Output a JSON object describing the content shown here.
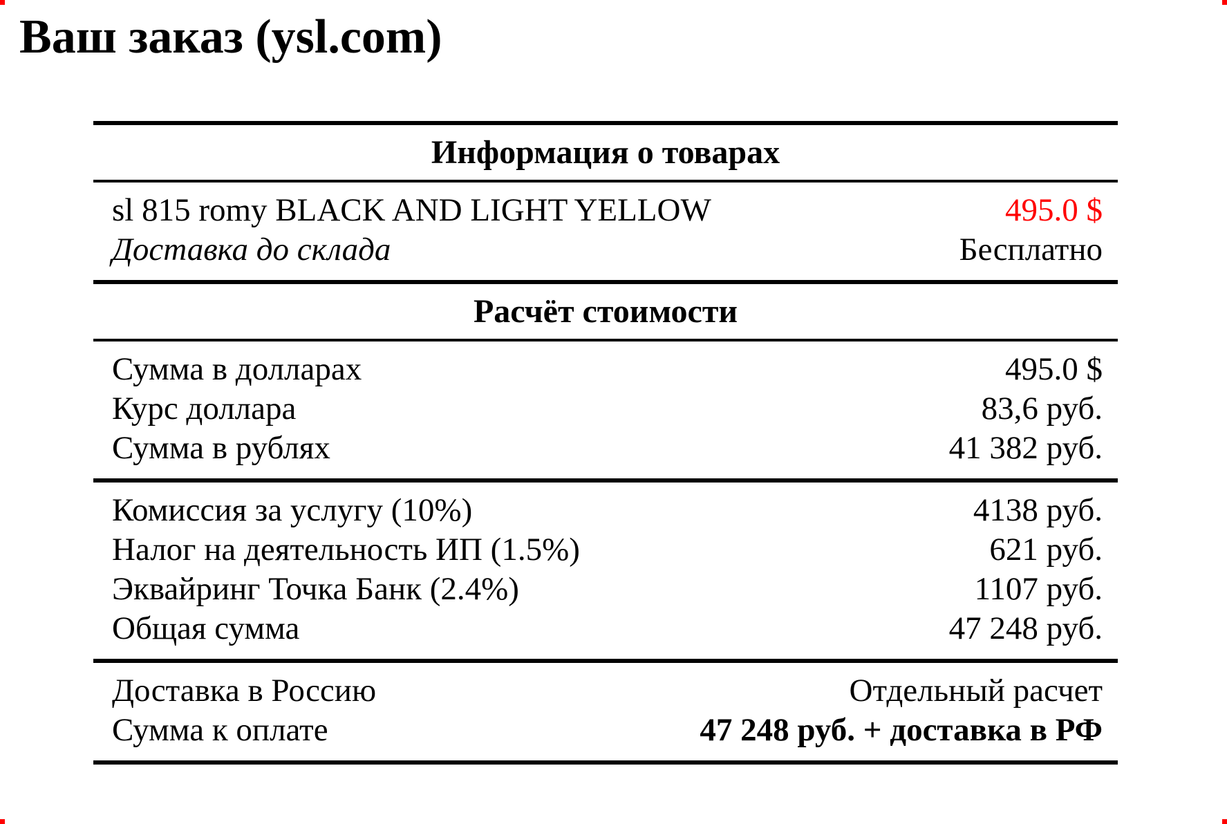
{
  "page": {
    "title": "Ваш заказ (ysl.com)"
  },
  "colors": {
    "text": "#000000",
    "rule": "#000000",
    "price_highlight": "#ff0000",
    "corner_marker": "#ff0000"
  },
  "table": {
    "blocks": [
      {
        "type": "header",
        "text": "Информация о товарах"
      },
      {
        "type": "rows",
        "rows": [
          {
            "label": "sl 815 romy BLACK AND LIGHT YELLOW",
            "value": "495.0 $",
            "value_red": true
          },
          {
            "label": "Доставка до склада",
            "label_italic": true,
            "value": "Бесплатно"
          }
        ]
      },
      {
        "type": "header",
        "text": "Расчёт стоимости"
      },
      {
        "type": "rows",
        "rows": [
          {
            "label": "Сумма в долларах",
            "value": "495.0 $"
          },
          {
            "label": "Курс доллара",
            "value": "83,6 руб."
          },
          {
            "label": "Сумма в рублях",
            "value": "41 382 руб."
          }
        ]
      },
      {
        "type": "rows",
        "rows": [
          {
            "label": "Комиссия за услугу (10%)",
            "value": "4138 руб."
          },
          {
            "label": "Налог на деятельность ИП (1.5%)",
            "value": "621 руб."
          },
          {
            "label": "Эквайринг Точка Банк (2.4%)",
            "value": "1107 руб."
          },
          {
            "label": "Общая сумма",
            "value": "47 248 руб."
          }
        ]
      },
      {
        "type": "rows",
        "rows": [
          {
            "label": "Доставка в Россию",
            "value": "Отдельный расчет"
          },
          {
            "label": "Сумма к оплате",
            "value": "47 248 руб. + доставка в РФ",
            "value_bold": true
          }
        ]
      }
    ]
  }
}
